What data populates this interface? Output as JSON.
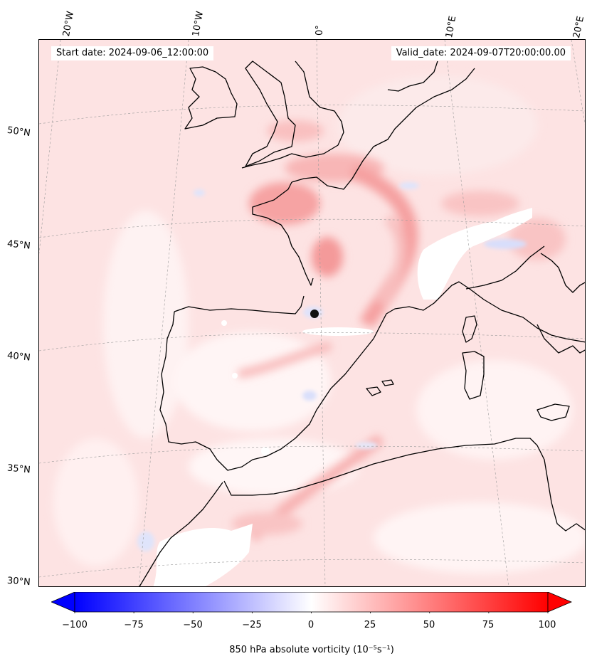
{
  "map": {
    "start_date": "Start date: 2024-09-06_12:00:00",
    "valid_date": "Valid_date: 2024-09-07T20:00:00.00",
    "lon_labels": [
      "20°W",
      "10°W",
      "0°",
      "10°E",
      "20°E"
    ],
    "lat_labels": [
      "50°N",
      "45°N",
      "40°N",
      "35°N",
      "30°N"
    ],
    "field_colors": {
      "background": "#fde3e3",
      "positive_strong": "#f58a8a",
      "positive_mid": "#f9b8b8",
      "negative": "#dde3fb",
      "coast": "#000000"
    }
  },
  "colorbar": {
    "label": "850 hPa absolute vorticity (10⁻⁵s⁻¹)",
    "ticks": [
      "−100",
      "−75",
      "−50",
      "−25",
      "0",
      "25",
      "50",
      "75",
      "100"
    ],
    "range": [
      -100,
      100
    ],
    "min_color": "#0000ff",
    "mid_color": "#ffffff",
    "max_color": "#ff0000"
  }
}
